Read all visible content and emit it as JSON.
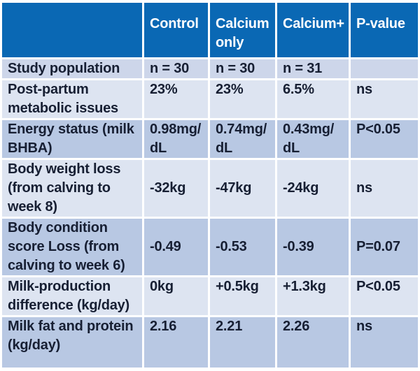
{
  "title": "Calcium supplementation study results table",
  "colors": {
    "header_bg": "#0a68b4",
    "header_text": "#ffffff",
    "row_first": "#cdd6ea",
    "row_light": "#dde4f1",
    "row_dark": "#b8c8e3",
    "text_dark": "#171f33"
  },
  "chart_data": {
    "type": "table",
    "columns": [
      "",
      "Control",
      "Calcium only",
      "Calcium+",
      "P-value"
    ],
    "rows": [
      {
        "label": "Study population",
        "values": [
          "n = 30",
          "n = 30",
          "n = 31",
          ""
        ]
      },
      {
        "label": "Post-partum metabolic issues",
        "values": [
          "23%",
          "23%",
          "6.5%",
          "ns"
        ]
      },
      {
        "label": "Energy status (milk BHBA)",
        "values": [
          "0.98mg/\ndL",
          "0.74mg/\ndL",
          "0.43mg/\ndL",
          "P<0.05"
        ]
      },
      {
        "label": "Body weight loss (from calving to week 8)",
        "values": [
          "-32kg",
          "-47kg",
          "-24kg",
          "ns"
        ]
      },
      {
        "label": "Body condition score Loss (from calving to week 6)",
        "values": [
          "-0.49",
          "-0.53",
          "-0.39",
          "P=0.07"
        ]
      },
      {
        "label": "Milk-production difference (kg/day)",
        "values": [
          "0kg",
          "+0.5kg",
          "+1.3kg",
          "P<0.05"
        ]
      },
      {
        "label": "Milk fat and protein (kg/day)",
        "values": [
          "2.16",
          "2.21",
          "2.26",
          "ns"
        ]
      }
    ]
  }
}
